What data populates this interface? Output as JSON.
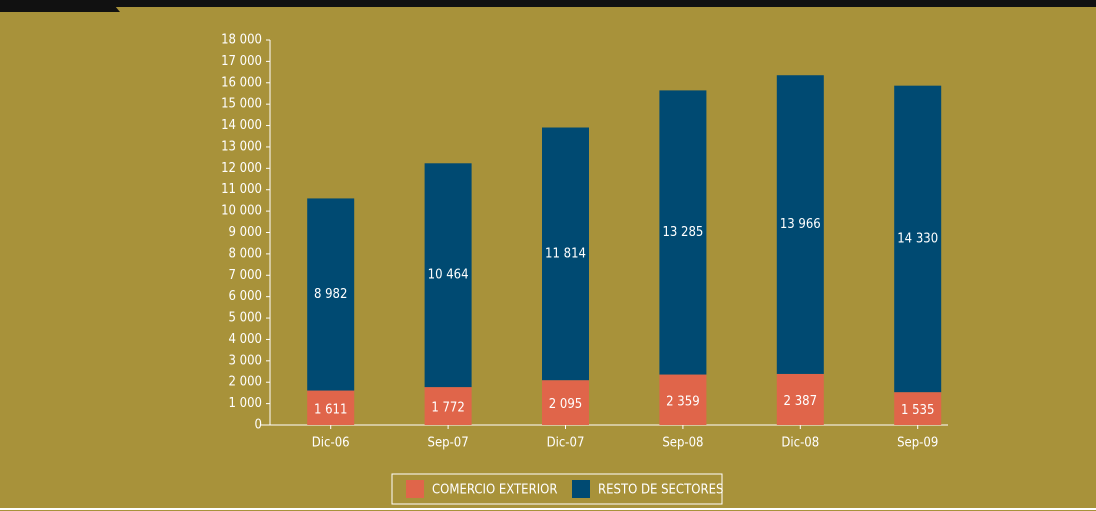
{
  "chart_data": {
    "type": "stacked_bar",
    "categories": [
      "Dic-06",
      "Sep-07",
      "Dic-07",
      "Sep-08",
      "Dic-08",
      "Sep-09"
    ],
    "series": [
      {
        "name": "COMERCIO EXTERIOR",
        "color": "#e0654a",
        "values": [
          1611,
          1772,
          2095,
          2359,
          2387,
          1535
        ],
        "value_labels": [
          "1 611",
          "1 772",
          "2 095",
          "2 359",
          "2 387",
          "1 535"
        ]
      },
      {
        "name": "RESTO DE SECTORES",
        "color": "#004a72",
        "values": [
          8982,
          10464,
          11814,
          13285,
          13966,
          14330
        ],
        "value_labels": [
          "8 982",
          "10 464",
          "11 814",
          "13 285",
          "13 966",
          "14 330"
        ]
      }
    ],
    "ylim": [
      0,
      18000
    ],
    "yticks": [
      0,
      {
        "value": 1000,
        "label": "1 000"
      },
      {
        "value": 2000,
        "label": "2 000"
      },
      {
        "value": 3000,
        "label": "3 000"
      },
      {
        "value": 4000,
        "label": "4 000"
      },
      {
        "value": 5000,
        "label": "5 000"
      },
      {
        "value": 6000,
        "label": "6 000"
      },
      {
        "value": 7000,
        "label": "7 000"
      },
      {
        "value": 8000,
        "label": "8 000"
      },
      {
        "value": 9000,
        "label": "9 000"
      },
      {
        "value": 10000,
        "label": "10 000"
      },
      {
        "value": 11000,
        "label": "11 000"
      },
      {
        "value": 12000,
        "label": "12 000"
      },
      {
        "value": 13000,
        "label": "13 000"
      },
      {
        "value": 14000,
        "label": "14 000"
      },
      {
        "value": 15000,
        "label": "15 000"
      },
      {
        "value": 16000,
        "label": "16 000"
      },
      {
        "value": 17000,
        "label": "17 000"
      },
      {
        "value": 18000,
        "label": "18 000"
      }
    ],
    "legend": "bottom"
  }
}
